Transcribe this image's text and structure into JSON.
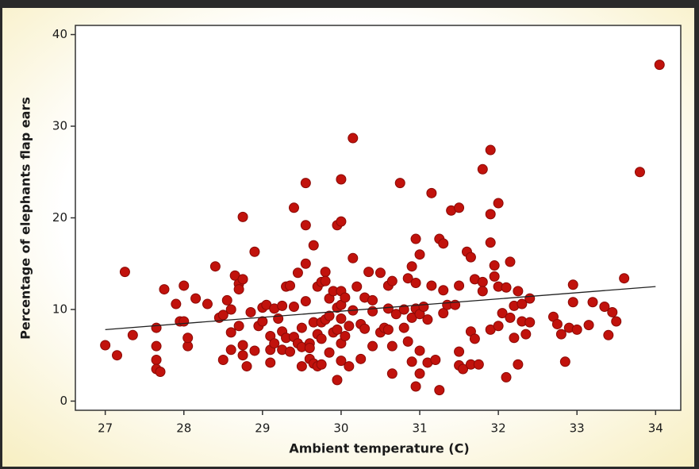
{
  "chart_data": {
    "type": "scatter",
    "x_label": "Ambient temperature (C)",
    "y_label": "Percentage of elephants flap ears",
    "color": "#c1120c",
    "xlim": [
      26.62,
      34.32
    ],
    "ylim": [
      -1.0,
      41.0
    ],
    "xticks": [
      27,
      28,
      29,
      30,
      31,
      32,
      33,
      34
    ],
    "yticks": [
      0,
      10,
      20,
      30,
      40
    ],
    "trend_line": {
      "x": [
        27,
        34
      ],
      "y": [
        7.8,
        12.5
      ]
    },
    "x": [
      27.0,
      27.15,
      27.25,
      27.35,
      27.65,
      27.65,
      27.65,
      27.65,
      27.7,
      27.75,
      27.9,
      27.95,
      28.0,
      28.0,
      28.05,
      28.05,
      28.15,
      28.3,
      28.4,
      28.45,
      28.5,
      28.5,
      28.55,
      28.6,
      28.6,
      28.6,
      28.65,
      28.7,
      28.7,
      28.7,
      28.75,
      28.75,
      28.75,
      28.75,
      28.8,
      28.85,
      28.9,
      28.9,
      28.95,
      29.0,
      29.0,
      29.05,
      29.1,
      29.1,
      29.1,
      29.15,
      29.15,
      29.2,
      29.25,
      29.25,
      29.25,
      29.3,
      29.3,
      29.35,
      29.35,
      29.4,
      29.4,
      29.4,
      29.45,
      29.45,
      29.5,
      29.5,
      29.5,
      29.55,
      29.55,
      29.55,
      29.55,
      29.6,
      29.6,
      29.6,
      29.65,
      29.65,
      29.65,
      29.7,
      29.7,
      29.7,
      29.75,
      29.75,
      29.75,
      29.75,
      29.8,
      29.8,
      29.8,
      29.85,
      29.85,
      29.85,
      29.9,
      29.9,
      29.95,
      29.95,
      29.95,
      29.95,
      30.0,
      30.0,
      30.0,
      30.0,
      30.0,
      30.0,
      30.0,
      30.05,
      30.05,
      30.1,
      30.1,
      30.15,
      30.15,
      30.15,
      30.2,
      30.25,
      30.25,
      30.3,
      30.3,
      30.35,
      30.4,
      30.4,
      30.4,
      30.5,
      30.5,
      30.55,
      30.6,
      30.6,
      30.6,
      30.65,
      30.65,
      30.65,
      30.7,
      30.75,
      30.8,
      30.8,
      30.85,
      30.85,
      30.9,
      30.9,
      30.9,
      30.95,
      30.95,
      30.95,
      30.95,
      31.0,
      31.0,
      31.0,
      31.0,
      31.05,
      31.1,
      31.1,
      31.15,
      31.15,
      31.2,
      31.25,
      31.25,
      31.3,
      31.3,
      31.3,
      31.35,
      31.4,
      31.45,
      31.5,
      31.5,
      31.5,
      31.5,
      31.55,
      31.6,
      31.65,
      31.65,
      31.65,
      31.7,
      31.7,
      31.75,
      31.8,
      31.8,
      31.8,
      31.9,
      31.9,
      31.9,
      31.9,
      31.95,
      31.95,
      32.0,
      32.0,
      32.0,
      32.05,
      32.1,
      32.1,
      32.15,
      32.15,
      32.2,
      32.2,
      32.25,
      32.25,
      32.3,
      32.3,
      32.35,
      32.4,
      32.4,
      32.7,
      32.75,
      32.8,
      32.85,
      32.9,
      32.95,
      32.95,
      33.0,
      33.15,
      33.2,
      33.35,
      33.4,
      33.45,
      33.5,
      33.6,
      33.8,
      34.05
    ],
    "values": [
      6.1,
      5.0,
      14.1,
      7.2,
      8.0,
      6.0,
      4.5,
      3.5,
      3.2,
      12.2,
      10.6,
      8.7,
      12.6,
      8.7,
      6.0,
      6.9,
      11.2,
      10.6,
      14.7,
      9.1,
      9.4,
      4.5,
      11.0,
      5.6,
      10.0,
      7.5,
      13.7,
      12.8,
      12.2,
      8.2,
      20.1,
      13.3,
      6.1,
      5.0,
      3.8,
      9.7,
      16.3,
      5.5,
      8.2,
      10.2,
      8.7,
      10.5,
      4.2,
      5.6,
      7.1,
      10.1,
      6.3,
      9.0,
      7.6,
      10.4,
      5.6,
      12.5,
      6.9,
      12.6,
      5.4,
      21.1,
      10.3,
      7.0,
      14.0,
      6.3,
      5.9,
      3.8,
      8.0,
      23.8,
      19.2,
      15.0,
      10.9,
      6.3,
      5.8,
      4.6,
      17.0,
      8.6,
      4.1,
      12.5,
      7.3,
      3.8,
      13.0,
      8.6,
      6.8,
      4.0,
      14.1,
      13.1,
      8.9,
      11.2,
      9.3,
      5.3,
      7.5,
      12.0,
      2.3,
      19.2,
      10.2,
      7.8,
      24.2,
      19.6,
      12.0,
      10.5,
      9.0,
      6.3,
      4.4,
      11.3,
      7.1,
      3.8,
      8.2,
      28.7,
      15.6,
      9.9,
      12.5,
      8.4,
      4.6,
      11.3,
      7.9,
      14.1,
      6.0,
      11.0,
      9.8,
      7.5,
      14.0,
      8.0,
      12.6,
      10.1,
      7.8,
      13.1,
      3.0,
      6.0,
      9.5,
      23.8,
      10.0,
      8.0,
      13.4,
      6.5,
      14.7,
      9.1,
      4.3,
      17.7,
      12.9,
      10.1,
      1.6,
      16.0,
      9.5,
      5.5,
      3.0,
      10.3,
      8.9,
      4.2,
      22.7,
      12.6,
      4.5,
      17.7,
      1.2,
      17.2,
      12.1,
      9.6,
      10.5,
      20.8,
      10.5,
      21.1,
      12.6,
      5.4,
      3.9,
      3.5,
      16.3,
      15.7,
      7.6,
      4.0,
      13.3,
      6.8,
      4.0,
      25.3,
      13.0,
      12.0,
      27.4,
      20.4,
      17.3,
      7.8,
      14.8,
      13.6,
      21.6,
      12.5,
      8.2,
      9.6,
      12.4,
      2.6,
      15.2,
      9.1,
      10.4,
      6.9,
      12.0,
      4.0,
      10.6,
      8.7,
      7.3,
      11.2,
      8.6,
      9.2,
      8.4,
      7.3,
      4.3,
      8.0,
      10.8,
      12.7,
      7.8,
      8.3,
      10.8,
      10.3,
      7.2,
      9.7,
      8.7,
      13.4,
      25.0,
      36.7
    ]
  }
}
